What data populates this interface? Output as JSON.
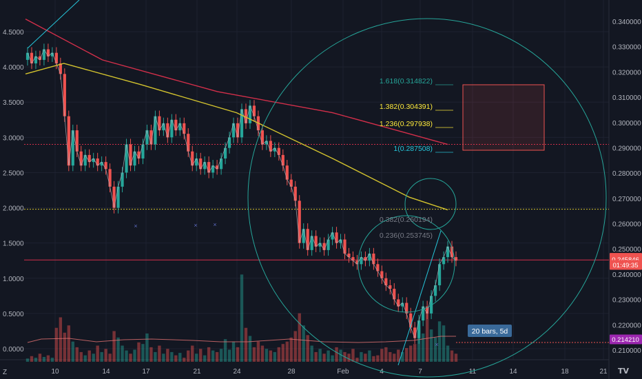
{
  "chart_data": {
    "type": "candlestick",
    "left_axis": {
      "ticks": [
        "4.5000",
        "4.0000",
        "3.5000",
        "3.0000",
        "2.5000",
        "2.0000",
        "1.5000",
        "1.0000",
        "0.5000",
        "0.0000"
      ],
      "range": [
        -0.1,
        4.9
      ]
    },
    "right_axis": {
      "ticks": [
        "0.340000",
        "0.330000",
        "0.320000",
        "0.310000",
        "0.300000",
        "0.290000",
        "0.280000",
        "0.270000",
        "0.260000",
        "0.250000",
        "0.240000",
        "0.230000",
        "0.220000",
        "0.210000"
      ],
      "range": [
        0.20655,
        0.34281
      ]
    },
    "x_axis": {
      "ticks": [
        "10",
        "14",
        "17",
        "21",
        "24",
        "28",
        "Feb",
        "4",
        "7",
        "11",
        "14",
        "18",
        "21"
      ]
    },
    "price_candles": [
      [
        4.1,
        4.2
      ],
      [
        4.2,
        4.05
      ],
      [
        4.05,
        4.15
      ],
      [
        4.15,
        4.1
      ],
      [
        4.1,
        4.25
      ],
      [
        4.25,
        4.15
      ],
      [
        4.15,
        4.2
      ],
      [
        4.2,
        4.05
      ],
      [
        4.05,
        3.9
      ],
      [
        3.9,
        3.3
      ],
      [
        3.3,
        2.6
      ],
      [
        2.6,
        3.1
      ],
      [
        3.1,
        2.8
      ],
      [
        2.8,
        2.6
      ],
      [
        2.6,
        2.75
      ],
      [
        2.75,
        2.65
      ],
      [
        2.65,
        2.7
      ],
      [
        2.7,
        2.6
      ],
      [
        2.6,
        2.65
      ],
      [
        2.65,
        2.55
      ],
      [
        2.55,
        2.3
      ],
      [
        2.3,
        2.0
      ],
      [
        2.0,
        2.3
      ],
      [
        2.3,
        2.5
      ],
      [
        2.5,
        2.9
      ],
      [
        2.9,
        2.6
      ],
      [
        2.6,
        2.8
      ],
      [
        2.8,
        2.7
      ],
      [
        2.7,
        2.9
      ],
      [
        2.9,
        3.1
      ],
      [
        3.1,
        2.9
      ],
      [
        2.9,
        3.3
      ],
      [
        3.3,
        3.1
      ],
      [
        3.1,
        3.2
      ],
      [
        3.2,
        3.0
      ],
      [
        3.0,
        3.25
      ],
      [
        3.25,
        3.1
      ],
      [
        3.1,
        3.2
      ],
      [
        3.2,
        3.05
      ],
      [
        3.05,
        2.8
      ],
      [
        2.8,
        2.6
      ],
      [
        2.6,
        2.7
      ],
      [
        2.7,
        2.55
      ],
      [
        2.55,
        2.65
      ],
      [
        2.65,
        2.5
      ],
      [
        2.5,
        2.6
      ],
      [
        2.6,
        2.55
      ],
      [
        2.55,
        2.7
      ],
      [
        2.7,
        2.85
      ],
      [
        2.85,
        3.0
      ],
      [
        3.0,
        3.2
      ],
      [
        3.2,
        3.0
      ],
      [
        3.0,
        3.4
      ],
      [
        3.4,
        3.2
      ],
      [
        3.2,
        3.45
      ],
      [
        3.45,
        3.3
      ],
      [
        3.3,
        3.1
      ],
      [
        3.1,
        2.9
      ],
      [
        2.9,
        2.95
      ],
      [
        2.95,
        2.8
      ],
      [
        2.8,
        2.85
      ],
      [
        2.85,
        2.75
      ],
      [
        2.75,
        2.6
      ],
      [
        2.6,
        2.4
      ],
      [
        2.4,
        2.3
      ],
      [
        2.3,
        2.1
      ],
      [
        2.1,
        1.5
      ],
      [
        1.5,
        1.7
      ],
      [
        1.7,
        1.4
      ],
      [
        1.4,
        1.6
      ],
      [
        1.6,
        1.45
      ],
      [
        1.45,
        1.5
      ],
      [
        1.5,
        1.4
      ],
      [
        1.4,
        1.55
      ],
      [
        1.55,
        1.65
      ],
      [
        1.65,
        1.5
      ],
      [
        1.5,
        1.55
      ],
      [
        1.55,
        1.35
      ],
      [
        1.35,
        1.3
      ],
      [
        1.3,
        1.25
      ],
      [
        1.25,
        1.2
      ],
      [
        1.2,
        1.3
      ],
      [
        1.3,
        1.25
      ],
      [
        1.25,
        1.35
      ],
      [
        1.35,
        1.2
      ],
      [
        1.2,
        1.1
      ],
      [
        1.1,
        1.0
      ],
      [
        1.0,
        0.9
      ],
      [
        0.9,
        0.85
      ],
      [
        0.85,
        0.7
      ],
      [
        0.7,
        0.6
      ],
      [
        0.6,
        0.65
      ],
      [
        0.65,
        0.5
      ],
      [
        0.5,
        0.3
      ],
      [
        0.3,
        0.15
      ],
      [
        0.15,
        0.4
      ],
      [
        0.4,
        0.6
      ],
      [
        0.6,
        0.5
      ],
      [
        0.5,
        0.75
      ],
      [
        0.75,
        0.9
      ],
      [
        0.9,
        1.2
      ],
      [
        1.2,
        1.3
      ],
      [
        1.3,
        1.45
      ],
      [
        1.45,
        1.3
      ],
      [
        1.3,
        1.25
      ]
    ],
    "volumes": [
      0.04,
      0.07,
      0.05,
      0.1,
      0.06,
      0.08,
      0.05,
      0.42,
      0.55,
      0.36,
      0.45,
      0.25,
      0.18,
      0.12,
      0.08,
      0.14,
      0.1,
      0.2,
      0.12,
      0.16,
      0.1,
      0.38,
      0.3,
      0.2,
      0.14,
      0.1,
      0.15,
      0.24,
      0.22,
      0.35,
      0.18,
      0.12,
      0.2,
      0.1,
      0.16,
      0.12,
      0.08,
      0.11,
      0.05,
      0.14,
      0.2,
      0.1,
      0.16,
      0.08,
      0.18,
      0.14,
      0.12,
      0.16,
      0.28,
      0.15,
      0.25,
      0.18,
      1.08,
      0.42,
      0.32,
      0.18,
      0.25,
      0.2,
      0.16,
      0.14,
      0.12,
      0.18,
      0.22,
      0.25,
      0.3,
      0.38,
      0.6,
      0.45,
      0.33,
      0.2,
      0.12,
      0.16,
      0.1,
      0.14,
      0.08,
      0.18,
      0.15,
      0.12,
      0.1,
      0.16,
      0.05,
      0.12,
      0.1,
      0.14,
      0.07,
      0.08,
      0.16,
      0.18,
      0.12,
      0.1,
      0.15,
      0.12,
      0.17,
      0.2,
      0.22,
      0.42,
      0.35,
      0.6,
      0.4,
      0.3,
      0.5,
      0.45,
      0.2,
      0.14,
      0.1
    ],
    "moving_averages": [
      {
        "color": "#d32f4a",
        "points": [
          [
            0,
            4.68
          ],
          [
            20,
            4.1
          ],
          [
            50,
            3.65
          ],
          [
            80,
            3.35
          ],
          [
            100,
            3.05
          ],
          [
            110,
            2.9
          ]
        ]
      },
      {
        "color": "#d4c42e",
        "points": [
          [
            0,
            3.9
          ],
          [
            10,
            4.05
          ],
          [
            30,
            3.75
          ],
          [
            55,
            3.35
          ],
          [
            80,
            2.7
          ],
          [
            100,
            2.15
          ],
          [
            110,
            1.97
          ]
        ]
      }
    ],
    "horizontal_lines": [
      {
        "value": 2.9,
        "color": "#d32f4a",
        "style": "dotted"
      },
      {
        "value": 1.98,
        "color": "#d4c42e",
        "style": "dotted"
      },
      {
        "value": 1.26,
        "color": "#d32f4a",
        "style": "solid"
      }
    ],
    "fib_levels": [
      {
        "label": "1.618(0.314822)",
        "color": "#26a69a"
      },
      {
        "label": "1.382(0.304391)",
        "color": "#ffeb3b"
      },
      {
        "label": "1.236(0.297938)",
        "color": "#ffeb3b"
      },
      {
        "label": "1(0.287508)",
        "color": "#26c6da"
      },
      {
        "label": "0.382(0.260194)",
        "color": "#787b86"
      },
      {
        "label": "0.236(0.253745)",
        "color": "#787b86"
      }
    ],
    "price_tags": [
      {
        "label": "0.246478",
        "color": "#ef5350",
        "value": 0.246478
      },
      {
        "label": "0.245846",
        "color": "#ef5350",
        "value": 0.245846
      },
      {
        "label": "01:49:35",
        "color": "#ef5350",
        "value": 0.24367
      },
      {
        "label": "0.214210",
        "color": "#9c27b0",
        "value": 0.21421
      }
    ],
    "right_axis_top_tick_partial": "0.340000",
    "callout": "20 bars, 5d"
  },
  "ui": {
    "logo_text": "TV",
    "bottom_left_mark": "Z"
  }
}
